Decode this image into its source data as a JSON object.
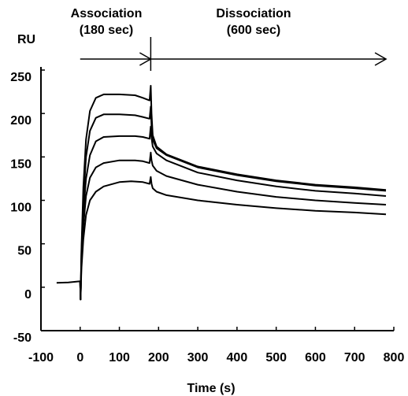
{
  "chart_data": {
    "type": "line",
    "xlabel": "Time (s)",
    "ylabel": "RU",
    "xlim": [
      -100,
      800
    ],
    "ylim": [
      -50,
      250
    ],
    "xticks": [
      -100,
      0,
      100,
      200,
      300,
      400,
      500,
      600,
      700,
      800
    ],
    "yticks": [
      -50,
      0,
      50,
      100,
      150,
      200,
      250
    ],
    "grid": false,
    "annotations": {
      "association": "Association",
      "association_duration": "(180 sec)",
      "association_range": [
        0,
        180
      ],
      "dissociation": "Dissociation",
      "dissociation_duration": "(600 sec)",
      "dissociation_range": [
        180,
        780
      ]
    },
    "baseline": [
      [
        -60,
        5
      ],
      [
        -30,
        5.6
      ],
      [
        0,
        6.8
      ]
    ],
    "series": [
      {
        "values": [
          [
            0,
            6.8
          ],
          [
            1,
            -14
          ],
          [
            3,
            40
          ],
          [
            8,
            115
          ],
          [
            15,
            170
          ],
          [
            25,
            203
          ],
          [
            40,
            218
          ],
          [
            60,
            222
          ],
          [
            100,
            222
          ],
          [
            140,
            221
          ],
          [
            160,
            218
          ],
          [
            177,
            215
          ],
          [
            180,
            232
          ],
          [
            182,
            200
          ],
          [
            185,
            175
          ],
          [
            195,
            162
          ],
          [
            220,
            153
          ],
          [
            300,
            139
          ],
          [
            400,
            130
          ],
          [
            500,
            123
          ],
          [
            600,
            118
          ],
          [
            700,
            115
          ],
          [
            780,
            112
          ]
        ]
      },
      {
        "values": [
          [
            0,
            6.8
          ],
          [
            1,
            -14
          ],
          [
            3,
            35
          ],
          [
            8,
            100
          ],
          [
            15,
            150
          ],
          [
            25,
            180
          ],
          [
            40,
            195
          ],
          [
            60,
            199
          ],
          [
            100,
            199
          ],
          [
            140,
            198
          ],
          [
            160,
            196
          ],
          [
            177,
            194
          ],
          [
            180,
            208
          ],
          [
            182,
            185
          ],
          [
            185,
            170
          ],
          [
            195,
            160
          ],
          [
            220,
            152
          ],
          [
            300,
            138
          ],
          [
            400,
            129
          ],
          [
            500,
            122
          ],
          [
            600,
            117
          ],
          [
            700,
            114
          ],
          [
            780,
            111
          ]
        ]
      },
      {
        "values": [
          [
            0,
            6.8
          ],
          [
            1,
            -14
          ],
          [
            3,
            30
          ],
          [
            8,
            85
          ],
          [
            15,
            125
          ],
          [
            25,
            152
          ],
          [
            40,
            168
          ],
          [
            60,
            173
          ],
          [
            100,
            174
          ],
          [
            140,
            174
          ],
          [
            160,
            173
          ],
          [
            177,
            171
          ],
          [
            180,
            185
          ],
          [
            182,
            172
          ],
          [
            185,
            162
          ],
          [
            195,
            154
          ],
          [
            220,
            146
          ],
          [
            300,
            132
          ],
          [
            400,
            123
          ],
          [
            500,
            116
          ],
          [
            600,
            111
          ],
          [
            700,
            108
          ],
          [
            780,
            105
          ]
        ]
      },
      {
        "values": [
          [
            0,
            6.8
          ],
          [
            1,
            -14
          ],
          [
            3,
            25
          ],
          [
            8,
            70
          ],
          [
            15,
            105
          ],
          [
            25,
            126
          ],
          [
            40,
            138
          ],
          [
            60,
            143
          ],
          [
            100,
            146
          ],
          [
            140,
            146
          ],
          [
            160,
            145
          ],
          [
            177,
            143
          ],
          [
            180,
            155
          ],
          [
            182,
            146
          ],
          [
            185,
            140
          ],
          [
            195,
            134
          ],
          [
            220,
            128
          ],
          [
            300,
            118
          ],
          [
            400,
            110
          ],
          [
            500,
            104
          ],
          [
            600,
            100
          ],
          [
            700,
            97
          ],
          [
            780,
            95
          ]
        ]
      },
      {
        "values": [
          [
            0,
            6.8
          ],
          [
            1,
            -14
          ],
          [
            3,
            20
          ],
          [
            8,
            55
          ],
          [
            15,
            83
          ],
          [
            25,
            100
          ],
          [
            40,
            110
          ],
          [
            60,
            116
          ],
          [
            100,
            121
          ],
          [
            130,
            122
          ],
          [
            160,
            121
          ],
          [
            177,
            119
          ],
          [
            180,
            127
          ],
          [
            182,
            119
          ],
          [
            185,
            114
          ],
          [
            195,
            110
          ],
          [
            220,
            106
          ],
          [
            300,
            100
          ],
          [
            400,
            95
          ],
          [
            500,
            91
          ],
          [
            600,
            88
          ],
          [
            700,
            86
          ],
          [
            780,
            84
          ]
        ]
      }
    ]
  }
}
